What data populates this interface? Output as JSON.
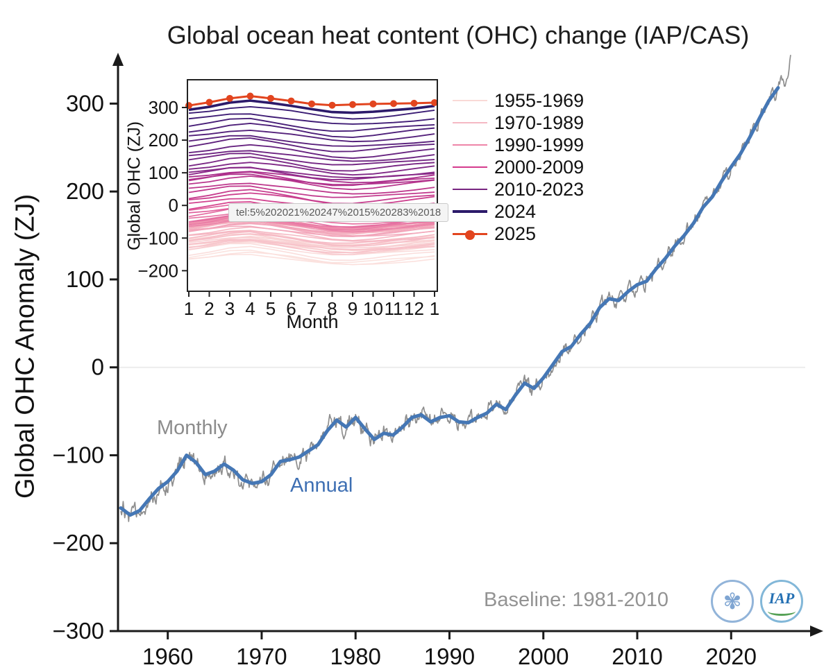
{
  "tooltip": {
    "text": "tel:5%202021%20247%2015%20283%2018"
  },
  "logos": {
    "iap_text": "IAP"
  },
  "chart_data": [
    {
      "id": "main",
      "type": "line",
      "title": "Global ocean heat content (OHC) change (IAP/CAS)",
      "xlabel": "",
      "ylabel": "Global OHC Anomaly (ZJ)",
      "xlim": [
        1954.7,
        2027.3
      ],
      "ylim": [
        -300,
        350
      ],
      "x_ticks": [
        1960,
        1970,
        1980,
        1990,
        2000,
        2010,
        2020
      ],
      "y_ticks": [
        300,
        200,
        100,
        0,
        -100,
        -200,
        -300
      ],
      "zero_gridline": true,
      "axis_color": "#1a1a1a",
      "zero_line_color": "#ececec",
      "annotations": {
        "monthly": "Monthly",
        "annual": "Annual",
        "baseline": "Baseline: 1981-2010"
      },
      "series": [
        {
          "name": "Monthly",
          "color": "#8e8e8e",
          "width": 1.7,
          "derived_from": "Annual",
          "noise_amplitude": 12
        },
        {
          "name": "Annual",
          "color": "#4577b5",
          "width": 5,
          "x_start": 1955,
          "x_step": 1,
          "values": [
            -160,
            -168,
            -163,
            -150,
            -138,
            -130,
            -118,
            -100,
            -108,
            -122,
            -118,
            -110,
            -117,
            -128,
            -132,
            -130,
            -122,
            -107,
            -105,
            -102,
            -95,
            -88,
            -72,
            -60,
            -68,
            -57,
            -70,
            -82,
            -75,
            -77,
            -68,
            -57,
            -54,
            -62,
            -57,
            -55,
            -62,
            -63,
            -57,
            -52,
            -42,
            -48,
            -32,
            -18,
            -24,
            -12,
            3,
            18,
            24,
            38,
            50,
            68,
            78,
            76,
            86,
            94,
            98,
            112,
            124,
            138,
            150,
            164,
            182,
            194,
            212,
            228,
            243,
            262,
            283,
            303,
            318
          ]
        }
      ]
    },
    {
      "id": "inset",
      "type": "line",
      "ylabel": "Global OHC (ZJ)",
      "xlabel": "Month",
      "x_ticks": [
        1,
        2,
        3,
        4,
        5,
        6,
        7,
        8,
        9,
        10,
        11,
        12,
        1
      ],
      "y_ticks": [
        300,
        200,
        100,
        0,
        -100,
        -200
      ],
      "ylim": [
        -263,
        385
      ],
      "seasonal_shape": [
        0,
        8,
        18,
        21,
        13,
        4,
        -6,
        -14,
        -16,
        -12,
        -6,
        0,
        6
      ],
      "groups": [
        {
          "label": "1955-1969",
          "color": "#fbe3df",
          "color_end": "#f8ccd0",
          "width": 1.6,
          "levels": [
            -160,
            -168,
            -163,
            -150,
            -138,
            -130,
            -118,
            -100,
            -108,
            -122,
            -118,
            -110,
            -117,
            -128,
            -132
          ]
        },
        {
          "label": "1970-1989",
          "color": "#f7c2c9",
          "color_end": "#f09bb4",
          "width": 1.6,
          "levels": [
            -130,
            -122,
            -107,
            -105,
            -102,
            -95,
            -88,
            -72,
            -60,
            -68,
            -57,
            -70,
            -82,
            -75,
            -77,
            -68,
            -57,
            -54,
            -62,
            -57
          ]
        },
        {
          "label": "1990-1999",
          "color": "#ef8cab",
          "color_end": "#df5f9c",
          "width": 1.7,
          "levels": [
            -55,
            -62,
            -63,
            -57,
            -52,
            -42,
            -48,
            -32,
            -18,
            -24
          ]
        },
        {
          "label": "2000-2009",
          "color": "#d6458f",
          "color_end": "#aa2f8c",
          "width": 1.8,
          "levels": [
            -12,
            3,
            18,
            24,
            38,
            50,
            68,
            78,
            76,
            86
          ]
        },
        {
          "label": "2010-2023",
          "color": "#8d2b8a",
          "color_end": "#3a1c74",
          "width": 1.9,
          "levels": [
            94,
            98,
            112,
            124,
            138,
            150,
            164,
            182,
            194,
            212,
            228,
            243,
            262,
            283
          ]
        },
        {
          "label": "2024",
          "color": "#2c1a6a",
          "width": 3.6,
          "values": [
            293,
            302,
            315,
            321,
            314,
            305,
            295,
            286,
            284,
            287,
            292,
            297,
            305
          ]
        },
        {
          "label": "2025",
          "color": "#e2451f",
          "width": 3,
          "markers": true,
          "values": [
            306,
            316,
            328,
            335,
            328,
            320,
            311,
            307,
            309,
            311,
            312,
            313,
            315
          ]
        }
      ],
      "legend": {
        "position": "right",
        "entries": [
          {
            "label": "1955-1969",
            "color": "#f9d9d6",
            "width": 2.5
          },
          {
            "label": "1970-1989",
            "color": "#f5b8c3",
            "width": 2.5
          },
          {
            "label": "1990-1999",
            "color": "#ee85a8",
            "width": 2.5
          },
          {
            "label": "2000-2009",
            "color": "#d53b8d",
            "width": 2.5
          },
          {
            "label": "2010-2023",
            "color": "#772580",
            "width": 2.5
          },
          {
            "label": "2024",
            "color": "#2c1a6a",
            "width": 4.5
          },
          {
            "label": "2025",
            "color": "#e2451f",
            "width": 3,
            "marker": true
          }
        ]
      }
    }
  ]
}
